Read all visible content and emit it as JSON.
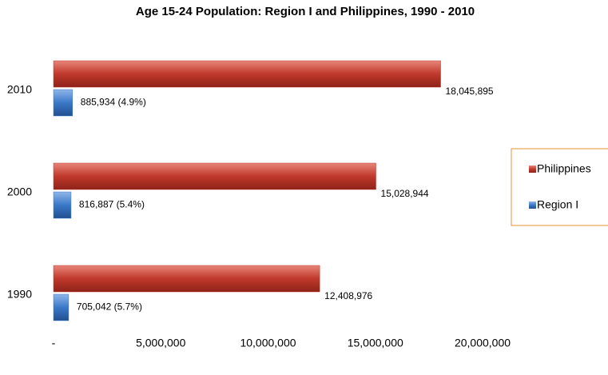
{
  "chart_data": {
    "type": "hbar",
    "title": "Age 15-24 Population: Region I and Philippines, 1990 - 2010",
    "categories": [
      "2010",
      "2000",
      "1990"
    ],
    "series": [
      {
        "name": "Philippines",
        "color": "#c0392b",
        "values": [
          18045895,
          15028944,
          12408976
        ],
        "value_labels": [
          "18,045,895",
          "15,028,944",
          "12,408,976"
        ]
      },
      {
        "name": "Region I",
        "color": "#3a78c8",
        "values": [
          885934,
          816887,
          705042
        ],
        "value_labels": [
          "885,934 (4.9%)",
          "816,887 (5.4%)",
          "705,042 (5.7%)"
        ]
      }
    ],
    "xlim": [
      0,
      20000000
    ],
    "xticks": [
      {
        "value": 0,
        "label": "-"
      },
      {
        "value": 5000000,
        "label": "5,000,000"
      },
      {
        "value": 10000000,
        "label": "10,000,000"
      },
      {
        "value": 15000000,
        "label": "15,000,000"
      },
      {
        "value": 20000000,
        "label": "20,000,000"
      }
    ],
    "legend": "right"
  }
}
